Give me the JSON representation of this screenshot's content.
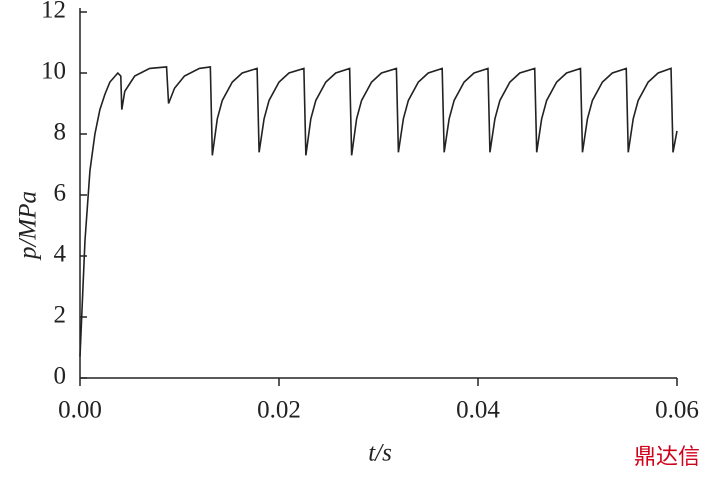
{
  "chart_data": {
    "type": "line",
    "xlabel": "t/s",
    "ylabel": "p/MPa",
    "watermark": "鼎达信",
    "xlim": [
      0,
      0.06
    ],
    "ylim": [
      0,
      12
    ],
    "xticks": [
      {
        "value": 0,
        "label": "0.00"
      },
      0.02,
      0.04,
      0.06
    ],
    "yticks": [
      0,
      2,
      4,
      6,
      8,
      10,
      12
    ],
    "series": [
      {
        "color": "#222222",
        "x": [
          0,
          0.0005,
          0.001,
          0.0015,
          0.002,
          0.0025,
          0.003,
          0.0038,
          0.0041,
          0.0042,
          0.0045,
          0.0055,
          0.007,
          0.0087,
          0.0089,
          0.0095,
          0.0105,
          0.012,
          0.0131,
          0.0133,
          0.0138,
          0.0143,
          0.0153,
          0.0163,
          0.0178,
          0.018,
          0.0185,
          0.019,
          0.02,
          0.021,
          0.0225,
          0.0227,
          0.0232,
          0.0237,
          0.0247,
          0.0257,
          0.0271,
          0.0273,
          0.0278,
          0.0283,
          0.0293,
          0.0303,
          0.0318,
          0.032,
          0.0325,
          0.033,
          0.034,
          0.035,
          0.0364,
          0.0366,
          0.0371,
          0.0376,
          0.0386,
          0.0396,
          0.041,
          0.0412,
          0.0417,
          0.0422,
          0.0432,
          0.0442,
          0.0457,
          0.0459,
          0.0464,
          0.0469,
          0.0479,
          0.0489,
          0.0503,
          0.0505,
          0.051,
          0.0515,
          0.0525,
          0.0535,
          0.0549,
          0.0551,
          0.0556,
          0.0561,
          0.0571,
          0.0581,
          0.0594,
          0.0596,
          0.06
        ],
        "values": [
          0.7,
          4.5,
          6.8,
          8.0,
          8.8,
          9.3,
          9.7,
          10.0,
          9.9,
          8.8,
          9.4,
          9.9,
          10.15,
          10.2,
          9.0,
          9.5,
          9.9,
          10.15,
          10.2,
          7.3,
          8.5,
          9.1,
          9.7,
          10.0,
          10.15,
          7.4,
          8.5,
          9.1,
          9.7,
          10.0,
          10.15,
          7.3,
          8.5,
          9.1,
          9.7,
          10.0,
          10.15,
          7.3,
          8.5,
          9.1,
          9.7,
          10.0,
          10.15,
          7.4,
          8.5,
          9.1,
          9.7,
          10.0,
          10.15,
          7.4,
          8.5,
          9.1,
          9.7,
          10.0,
          10.15,
          7.4,
          8.5,
          9.1,
          9.7,
          10.0,
          10.15,
          7.4,
          8.5,
          9.1,
          9.7,
          10.0,
          10.15,
          7.4,
          8.5,
          9.1,
          9.7,
          10.0,
          10.15,
          7.4,
          8.5,
          9.1,
          9.7,
          10.0,
          10.15,
          7.4,
          8.1
        ]
      }
    ]
  }
}
